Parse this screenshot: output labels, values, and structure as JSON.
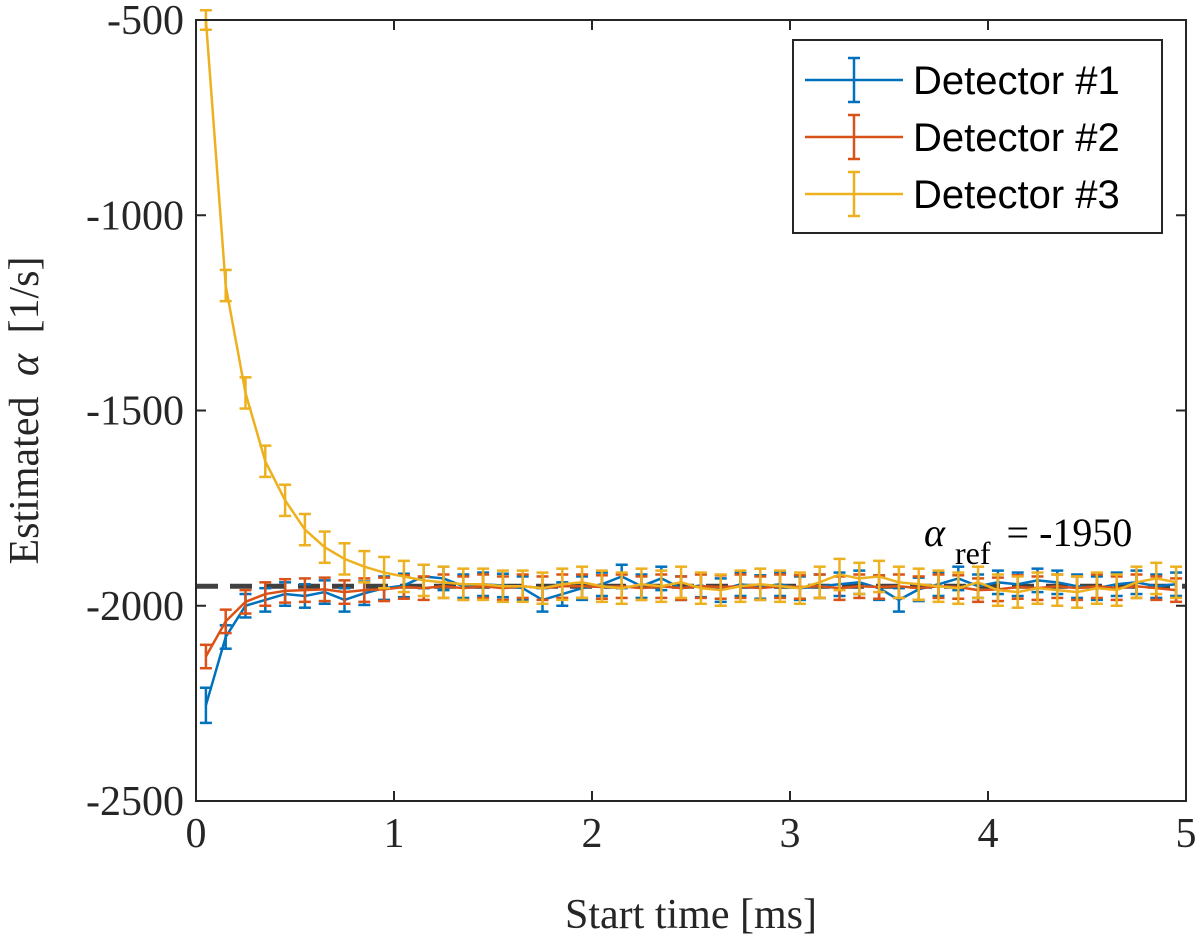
{
  "chart_data": {
    "type": "line",
    "title": "",
    "xlabel": "Start time [ms]",
    "ylabel": "Estimated",
    "ylabel_symbol": "α",
    "ylabel_unit": "[1/s]",
    "xlim": [
      0,
      5
    ],
    "ylim": [
      -2500,
      -500
    ],
    "xticks": [
      0,
      1,
      2,
      3,
      4,
      5
    ],
    "yticks": [
      -2500,
      -2000,
      -1500,
      -1000,
      -500
    ],
    "grid": false,
    "legend_position": "top-right",
    "reference": {
      "value": -1950,
      "style": "dashed",
      "color": "#404040",
      "label_symbol": "α",
      "label_subscript": "ref",
      "label_rest": "= -1950"
    },
    "x": [
      0.05,
      0.15,
      0.25,
      0.35,
      0.45,
      0.55,
      0.65,
      0.75,
      0.85,
      0.95,
      1.05,
      1.15,
      1.25,
      1.35,
      1.45,
      1.55,
      1.65,
      1.75,
      1.85,
      1.95,
      2.05,
      2.15,
      2.25,
      2.35,
      2.45,
      2.55,
      2.65,
      2.75,
      2.85,
      2.95,
      3.05,
      3.15,
      3.25,
      3.35,
      3.45,
      3.55,
      3.65,
      3.75,
      3.85,
      3.95,
      4.05,
      4.15,
      4.25,
      4.35,
      4.45,
      4.55,
      4.65,
      4.75,
      4.85,
      4.95
    ],
    "series": [
      {
        "name": "Detector #1",
        "color": "#0072BD",
        "values": [
          -2255,
          -2080,
          -2000,
          -1985,
          -1970,
          -1975,
          -1965,
          -1985,
          -1968,
          -1955,
          -1948,
          -1925,
          -1930,
          -1950,
          -1945,
          -1948,
          -1955,
          -1985,
          -1970,
          -1955,
          -1945,
          -1925,
          -1950,
          -1930,
          -1955,
          -1948,
          -1960,
          -1945,
          -1952,
          -1945,
          -1955,
          -1950,
          -1945,
          -1940,
          -1955,
          -1985,
          -1958,
          -1945,
          -1930,
          -1950,
          -1940,
          -1945,
          -1935,
          -1940,
          -1950,
          -1955,
          -1945,
          -1940,
          -1950,
          -1945
        ],
        "error": [
          45,
          30,
          30,
          30,
          30,
          30,
          30,
          30,
          30,
          30,
          30,
          30,
          30,
          30,
          30,
          30,
          30,
          30,
          30,
          30,
          30,
          30,
          30,
          30,
          30,
          30,
          30,
          30,
          30,
          30,
          30,
          30,
          30,
          30,
          30,
          30,
          30,
          30,
          30,
          30,
          30,
          30,
          30,
          30,
          30,
          30,
          30,
          30,
          30,
          30
        ]
      },
      {
        "name": "Detector #2",
        "color": "#D95319",
        "values": [
          -2130,
          -2040,
          -1990,
          -1970,
          -1962,
          -1960,
          -1958,
          -1965,
          -1960,
          -1958,
          -1952,
          -1955,
          -1950,
          -1955,
          -1950,
          -1955,
          -1950,
          -1955,
          -1950,
          -1950,
          -1952,
          -1950,
          -1955,
          -1950,
          -1955,
          -1950,
          -1952,
          -1950,
          -1955,
          -1950,
          -1952,
          -1950,
          -1955,
          -1950,
          -1952,
          -1950,
          -1955,
          -1950,
          -1952,
          -1960,
          -1958,
          -1952,
          -1955,
          -1950,
          -1955,
          -1950,
          -1955,
          -1950,
          -1955,
          -1960
        ],
        "error": [
          30,
          30,
          30,
          30,
          30,
          30,
          30,
          30,
          30,
          30,
          30,
          30,
          30,
          30,
          30,
          30,
          30,
          30,
          30,
          30,
          30,
          30,
          30,
          30,
          30,
          30,
          30,
          30,
          30,
          30,
          30,
          30,
          30,
          30,
          30,
          30,
          30,
          30,
          30,
          30,
          30,
          30,
          30,
          30,
          30,
          30,
          30,
          30,
          30,
          30
        ]
      },
      {
        "name": "Detector #3",
        "color": "#EDB120",
        "values": [
          -500,
          -1180,
          -1455,
          -1630,
          -1730,
          -1805,
          -1850,
          -1880,
          -1900,
          -1915,
          -1925,
          -1935,
          -1940,
          -1945,
          -1945,
          -1950,
          -1950,
          -1955,
          -1945,
          -1940,
          -1950,
          -1955,
          -1945,
          -1950,
          -1940,
          -1955,
          -1960,
          -1950,
          -1945,
          -1950,
          -1955,
          -1940,
          -1920,
          -1930,
          -1925,
          -1940,
          -1945,
          -1950,
          -1955,
          -1940,
          -1960,
          -1965,
          -1955,
          -1960,
          -1965,
          -1955,
          -1960,
          -1940,
          -1930,
          -1940
        ],
        "error": [
          25,
          40,
          40,
          40,
          40,
          40,
          40,
          40,
          40,
          40,
          40,
          40,
          40,
          40,
          40,
          40,
          40,
          40,
          40,
          40,
          40,
          40,
          40,
          40,
          40,
          40,
          40,
          40,
          40,
          40,
          40,
          40,
          40,
          40,
          40,
          40,
          40,
          40,
          40,
          40,
          40,
          40,
          40,
          40,
          40,
          40,
          40,
          40,
          40,
          40
        ]
      }
    ]
  }
}
